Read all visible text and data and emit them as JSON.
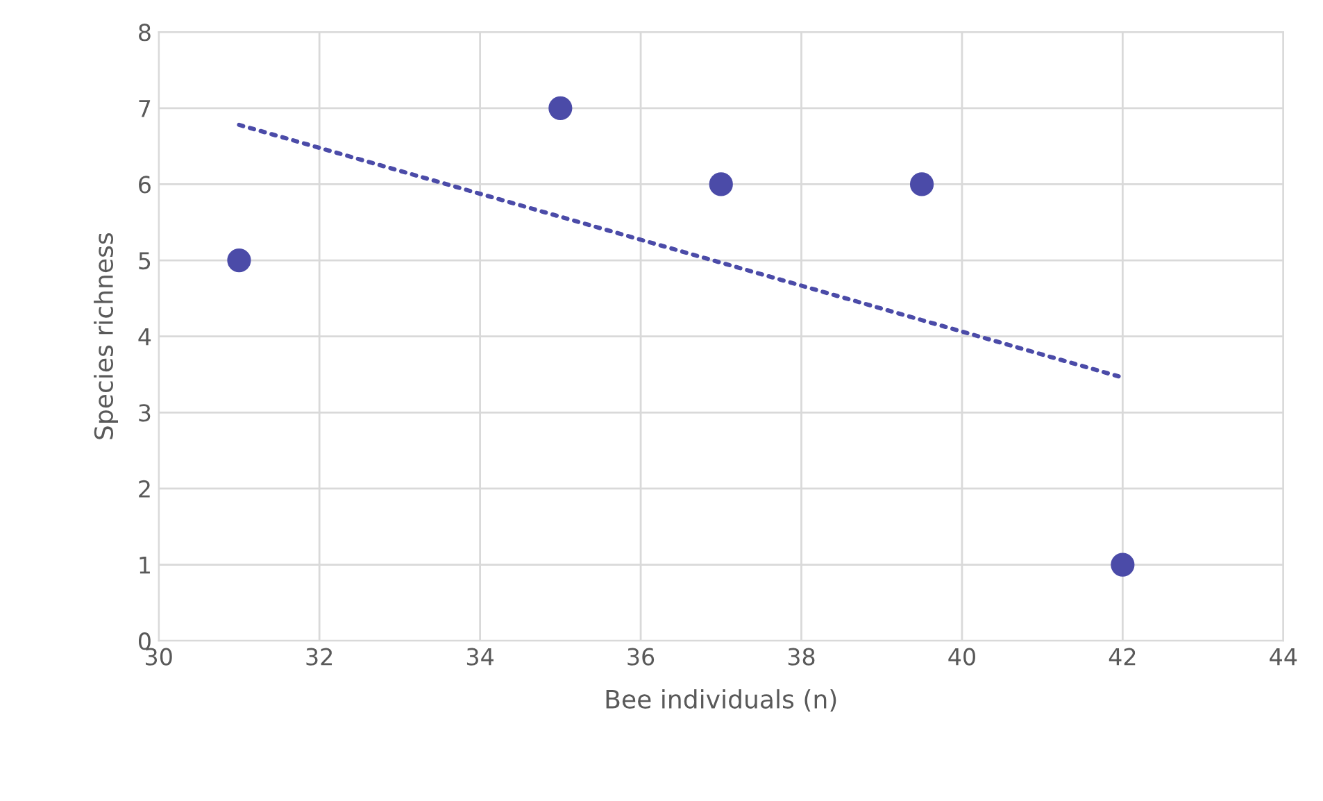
{
  "chart_data": {
    "type": "scatter",
    "xlabel": "Bee individuals (n)",
    "ylabel": "Species richness",
    "series": [
      {
        "color": "#4b4ba8",
        "x": [
          31,
          35,
          37,
          39.5,
          42
        ],
        "values": [
          5,
          7,
          6,
          6,
          1
        ],
        "marker": "circle"
      },
      {
        "type": "line",
        "color": "#4b4ba8",
        "x": [
          31,
          42
        ],
        "values": [
          6.78,
          3.46
        ],
        "line_style": "dotted"
      }
    ],
    "xlim": [
      30,
      44
    ],
    "xticks": [
      30,
      32,
      34,
      36,
      38,
      40,
      42,
      44
    ],
    "ylim": [
      0,
      8
    ],
    "yticks": [
      0,
      1,
      2,
      3,
      4,
      5,
      6,
      7,
      8
    ],
    "grid": true,
    "legend": false
  }
}
